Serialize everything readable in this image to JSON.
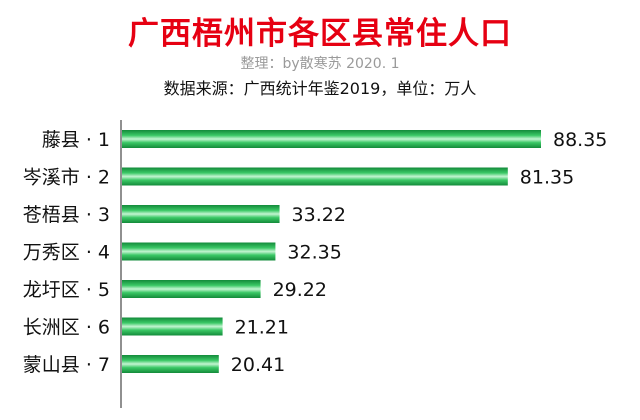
{
  "header": {
    "title": "广西梧州市各区县常住人口",
    "credit": "整理：by散寒苏  2020. 1",
    "source": "数据来源：广西统计年鉴2019，单位：万人"
  },
  "colors": {
    "title": "#e60012",
    "bar_dark": "#1aa84a",
    "bar_light": "#b7f0c7"
  },
  "chart_data": {
    "type": "bar",
    "orientation": "horizontal",
    "title": "广西梧州市各区县常住人口",
    "categories": [
      "藤县 · 1",
      "岑溪市 · 2",
      "苍梧县 · 3",
      "万秀区 · 4",
      "龙圩区 · 5",
      "长洲区 · 6",
      "蒙山县 · 7"
    ],
    "values": [
      88.35,
      81.35,
      33.22,
      32.35,
      29.22,
      21.21,
      20.41
    ],
    "value_labels": [
      "88.35",
      "81.35",
      "33.22",
      "32.35",
      "29.22",
      "21.21",
      "20.41"
    ],
    "xlim": [
      0,
      88.35
    ],
    "grid": false,
    "legend": "none"
  }
}
